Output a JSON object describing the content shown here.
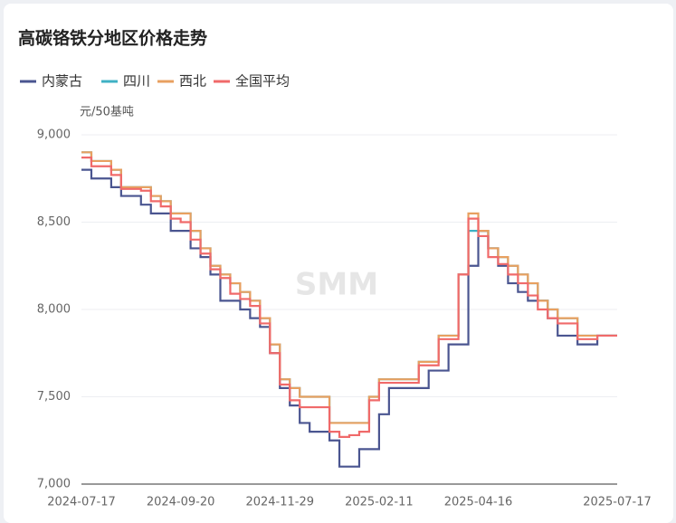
{
  "chart_data": {
    "type": "line",
    "title": "高碳铬铁分地区价格走势",
    "y_label": "元/50基吨",
    "watermark": "SMM",
    "categories": [
      "2024-07-17",
      null,
      null,
      null,
      null,
      null,
      null,
      null,
      null,
      null,
      "2024-09-20",
      null,
      null,
      null,
      null,
      null,
      null,
      null,
      null,
      null,
      "2024-11-29",
      null,
      null,
      null,
      null,
      null,
      null,
      null,
      null,
      null,
      "2025-02-11",
      null,
      null,
      null,
      null,
      null,
      null,
      null,
      null,
      null,
      "2025-04-16",
      null,
      null,
      null,
      null,
      null,
      null,
      null,
      null,
      null,
      null,
      null,
      null,
      null,
      "2025-07-17"
    ],
    "series": [
      {
        "name": "内蒙古",
        "color": "#4a5590",
        "values": [
          8800,
          8750,
          8750,
          8700,
          8650,
          8650,
          8600,
          8550,
          8550,
          8450,
          8450,
          8350,
          8300,
          8200,
          8050,
          8050,
          8000,
          7950,
          7900,
          7750,
          7550,
          7450,
          7350,
          7300,
          7300,
          7250,
          7100,
          7100,
          7200,
          7200,
          7400,
          7550,
          7550,
          7550,
          7550,
          7650,
          7650,
          7800,
          7800,
          8250,
          8450,
          8350,
          8250,
          8150,
          8100,
          8050,
          8050,
          7950,
          7850,
          7850,
          7800,
          7800,
          7850,
          7850,
          7850
        ]
      },
      {
        "name": "四川",
        "color": "#3fb1c4",
        "values": [
          8900,
          8850,
          8850,
          8800,
          8700,
          8700,
          8700,
          8650,
          8620,
          8550,
          8550,
          8450,
          8350,
          8250,
          8200,
          8150,
          8100,
          8050,
          7950,
          7800,
          7600,
          7550,
          7500,
          7500,
          7500,
          7350,
          7350,
          7350,
          7350,
          7500,
          7600,
          7600,
          7600,
          7600,
          7700,
          7700,
          7850,
          7850,
          8200,
          8450,
          8450,
          8350,
          8300,
          8250,
          8200,
          8150,
          8050,
          8000,
          7950,
          7950,
          7850,
          7850,
          7850,
          7850,
          7850
        ]
      },
      {
        "name": "西北",
        "color": "#e8a060",
        "values": [
          8900,
          8850,
          8850,
          8800,
          8700,
          8700,
          8700,
          8650,
          8620,
          8550,
          8550,
          8450,
          8350,
          8250,
          8200,
          8150,
          8100,
          8050,
          7950,
          7800,
          7600,
          7550,
          7500,
          7500,
          7500,
          7350,
          7350,
          7350,
          7350,
          7500,
          7600,
          7600,
          7600,
          7600,
          7700,
          7700,
          7850,
          7850,
          8200,
          8550,
          8450,
          8350,
          8300,
          8250,
          8200,
          8150,
          8050,
          8000,
          7950,
          7950,
          7850,
          7850,
          7850,
          7850,
          7850
        ]
      },
      {
        "name": "全国平均",
        "color": "#f06a6a",
        "values": [
          8870,
          8820,
          8820,
          8770,
          8690,
          8690,
          8680,
          8620,
          8590,
          8520,
          8500,
          8400,
          8320,
          8230,
          8180,
          8090,
          8060,
          8020,
          7920,
          7750,
          7570,
          7480,
          7440,
          7440,
          7440,
          7300,
          7270,
          7280,
          7300,
          7480,
          7580,
          7580,
          7580,
          7580,
          7680,
          7680,
          7830,
          7830,
          8200,
          8520,
          8420,
          8300,
          8260,
          8200,
          8150,
          8080,
          8000,
          7950,
          7920,
          7920,
          7830,
          7830,
          7850,
          7850,
          7850
        ]
      }
    ],
    "ylim": [
      7000,
      9000
    ],
    "yticks": [
      {
        "value": 7000,
        "label": "7,000"
      },
      {
        "value": 7500,
        "label": "7,500"
      },
      {
        "value": 8000,
        "label": "8,000"
      },
      {
        "value": 8500,
        "label": "8,500"
      },
      {
        "value": 9000,
        "label": "9,000"
      }
    ],
    "grid": true,
    "step": true
  }
}
